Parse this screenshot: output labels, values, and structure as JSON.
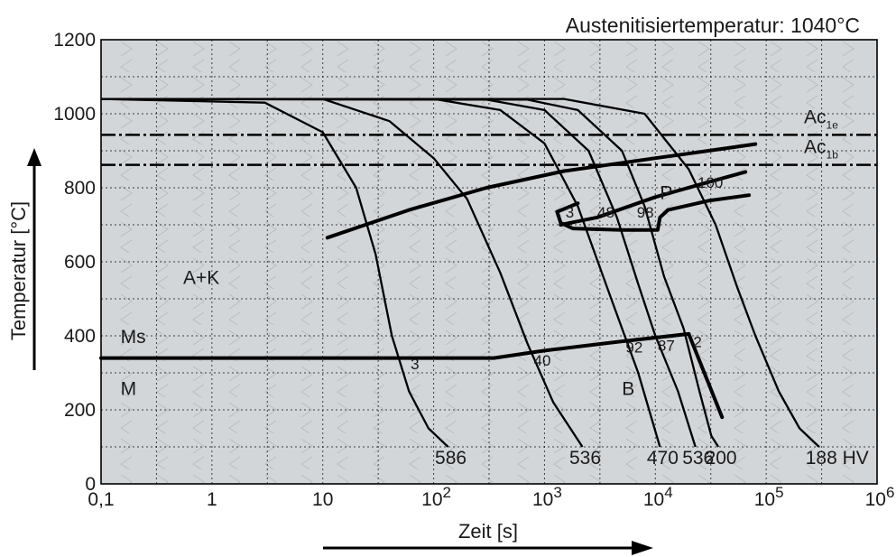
{
  "chart_data": {
    "type": "line",
    "title": "Austenitisiertemperatur: 1040°C",
    "xlabel": "Zeit [s]",
    "ylabel": "Temperatur [°C]",
    "x_scale": "log",
    "xlim": [
      0.1,
      1000000
    ],
    "ylim": [
      0,
      1200
    ],
    "x_ticks": [
      {
        "value": 0.1,
        "label": "0,1"
      },
      {
        "value": 1,
        "label": "1"
      },
      {
        "value": 10,
        "label": "10"
      },
      {
        "value": 100,
        "label": "10",
        "exp": "2"
      },
      {
        "value": 1000,
        "label": "10",
        "exp": "3"
      },
      {
        "value": 10000,
        "label": "10",
        "exp": "4"
      },
      {
        "value": 100000,
        "label": "10",
        "exp": "5"
      },
      {
        "value": 1000000,
        "label": "10",
        "exp": "6"
      }
    ],
    "y_ticks": [
      {
        "value": 0,
        "label": "0"
      },
      {
        "value": 200,
        "label": "200"
      },
      {
        "value": 400,
        "label": "400"
      },
      {
        "value": 600,
        "label": "600"
      },
      {
        "value": 800,
        "label": "800"
      },
      {
        "value": 1000,
        "label": "1000"
      },
      {
        "value": 1200,
        "label": "1200"
      }
    ],
    "grid": true,
    "background": "#d3d6d9",
    "ac_lines": [
      {
        "base": "Ac",
        "sub": "1e",
        "y": 943
      },
      {
        "base": "Ac",
        "sub": "1b",
        "y": 862
      }
    ],
    "cooling_curves": [
      {
        "hardness": "586",
        "points": [
          [
            0.1,
            1040
          ],
          [
            3,
            1030
          ],
          [
            10,
            950
          ],
          [
            20,
            800
          ],
          [
            30,
            620
          ],
          [
            42,
            400
          ],
          [
            60,
            250
          ],
          [
            90,
            150
          ],
          [
            135,
            100
          ]
        ]
      },
      {
        "hardness": "536",
        "points": [
          [
            0.1,
            1040
          ],
          [
            10,
            1040
          ],
          [
            40,
            980
          ],
          [
            100,
            880
          ],
          [
            200,
            770
          ],
          [
            400,
            570
          ],
          [
            700,
            380
          ],
          [
            1200,
            220
          ],
          [
            2200,
            100
          ]
        ]
      },
      {
        "hardness": "470",
        "points": [
          [
            0.1,
            1040
          ],
          [
            100,
            1040
          ],
          [
            400,
            1010
          ],
          [
            1000,
            920
          ],
          [
            2000,
            750
          ],
          [
            4000,
            500
          ],
          [
            7000,
            300
          ],
          [
            11000,
            100
          ]
        ]
      },
      {
        "hardness": "536",
        "points": [
          [
            0.1,
            1040
          ],
          [
            300,
            1038
          ],
          [
            1000,
            1010
          ],
          [
            2500,
            900
          ],
          [
            4500,
            720
          ],
          [
            7000,
            540
          ],
          [
            10000,
            400
          ],
          [
            16000,
            250
          ],
          [
            23000,
            100
          ]
        ]
      },
      {
        "hardness": "200",
        "points": [
          [
            0.1,
            1040
          ],
          [
            700,
            1038
          ],
          [
            2000,
            1010
          ],
          [
            5000,
            900
          ],
          [
            8000,
            750
          ],
          [
            12000,
            560
          ],
          [
            18000,
            420
          ],
          [
            25000,
            250
          ],
          [
            32000,
            130
          ],
          [
            37000,
            100
          ]
        ]
      },
      {
        "hardness": "188 HV",
        "points": [
          [
            0.1,
            1040
          ],
          [
            1500,
            1040
          ],
          [
            8000,
            1000
          ],
          [
            20000,
            850
          ],
          [
            35000,
            700
          ],
          [
            55000,
            530
          ],
          [
            80000,
            400
          ],
          [
            130000,
            250
          ],
          [
            200000,
            150
          ],
          [
            300000,
            100
          ]
        ]
      }
    ],
    "region_lines": [
      {
        "name": "pearlite-start",
        "points": [
          [
            11,
            665
          ],
          [
            60,
            740
          ],
          [
            300,
            800
          ],
          [
            1500,
            845
          ],
          [
            10000,
            880
          ],
          [
            40000,
            905
          ],
          [
            80000,
            918
          ]
        ]
      },
      {
        "name": "pearlite-end",
        "points": [
          [
            1400,
            700
          ],
          [
            3000,
            720
          ],
          [
            10000,
            775
          ],
          [
            30000,
            815
          ],
          [
            65000,
            843
          ]
        ]
      },
      {
        "name": "pearlite-upper-boundary",
        "points": [
          [
            2000,
            758
          ],
          [
            1300,
            735
          ],
          [
            1400,
            705
          ],
          [
            1800,
            690
          ],
          [
            5000,
            686
          ],
          [
            10500,
            686
          ],
          [
            11000,
            720
          ],
          [
            13000,
            740
          ],
          [
            30000,
            765
          ],
          [
            70000,
            780
          ]
        ]
      },
      {
        "name": "bainite-start",
        "points": [
          [
            0.1,
            340
          ],
          [
            350,
            340
          ],
          [
            1000,
            360
          ],
          [
            5000,
            385
          ],
          [
            20000,
            405
          ]
        ]
      },
      {
        "name": "martensite-finish",
        "points": [
          [
            20000,
            405
          ],
          [
            40000,
            180
          ]
        ]
      }
    ],
    "annotations": [
      {
        "text": "A+K",
        "x": 0.55,
        "y": 540
      },
      {
        "text": "Ms",
        "x": 0.15,
        "y": 380
      },
      {
        "text": "M",
        "x": 0.15,
        "y": 240
      },
      {
        "text": "B",
        "x": 5000,
        "y": 240
      },
      {
        "text": "P",
        "x": 11000,
        "y": 770
      },
      {
        "text": "3",
        "x": 62,
        "y": 310
      },
      {
        "text": "40",
        "x": 800,
        "y": 320
      },
      {
        "text": "92",
        "x": 5400,
        "y": 355
      },
      {
        "text": "87",
        "x": 10500,
        "y": 360
      },
      {
        "text": "2",
        "x": 22000,
        "y": 370
      },
      {
        "text": "3",
        "x": 1550,
        "y": 720
      },
      {
        "text": "48",
        "x": 3000,
        "y": 720
      },
      {
        "text": "98",
        "x": 6800,
        "y": 720
      },
      {
        "text": "100",
        "x": 24000,
        "y": 800
      }
    ]
  }
}
